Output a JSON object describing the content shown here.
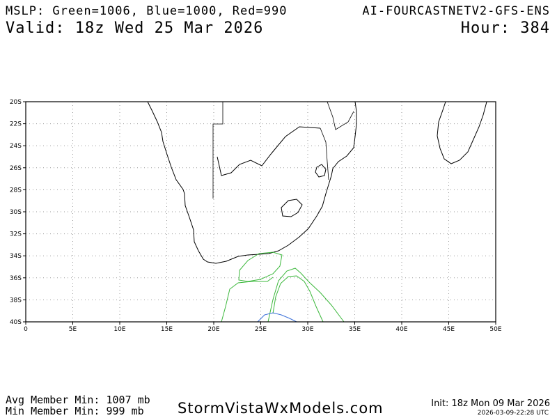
{
  "header": {
    "mslp_legend": "MSLP: Green=1006, Blue=1000, Red=990",
    "model": "AI-FOURCASTNETV2-GFS-ENS",
    "valid": "Valid: 18z Wed 25 Mar 2026",
    "hour": "Hour: 384"
  },
  "map": {
    "lat_labels": [
      "20S",
      "22S",
      "24S",
      "26S",
      "28S",
      "30S",
      "32S",
      "34S",
      "36S",
      "38S",
      "40S"
    ],
    "lon_labels": [
      "0",
      "5E",
      "10E",
      "15E",
      "20E",
      "25E",
      "30E",
      "35E",
      "40E",
      "45E",
      "50E"
    ],
    "lon_range": [
      0,
      50
    ],
    "lat_range": [
      -40,
      -20
    ],
    "grid": "dotted",
    "colors": {
      "coast": "#000000",
      "green": "#3cb83c",
      "blue": "#3a6fd8",
      "grid": "#9a9a9a"
    },
    "contours": [
      {
        "color": "green",
        "isobar": 1006
      },
      {
        "color": "blue",
        "isobar": 1000
      }
    ]
  },
  "footer": {
    "avg_min": "Avg Member Min: 1007 mb",
    "min_min": "Min Member Min: 999 mb",
    "brand": "StormVistaWxModels.com",
    "init": "Init: 18z Mon 09 Mar 2026",
    "timestamp": "2026-03-09-22:28 UTC"
  }
}
